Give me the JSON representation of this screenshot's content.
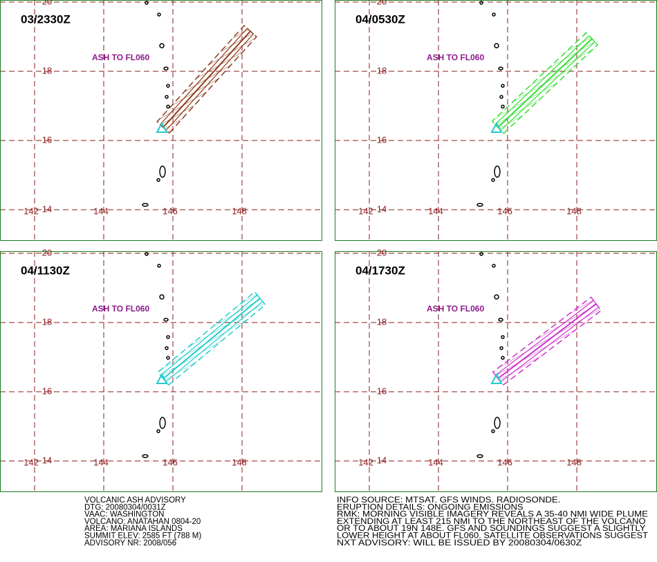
{
  "panels": [
    {
      "time": "03/2330Z",
      "note": "ASH TO FL060",
      "color": "#8b3a1a"
    },
    {
      "time": "04/0530Z",
      "note": "ASH TO FL060",
      "color": "#33dd33"
    },
    {
      "time": "04/1130Z",
      "note": "ASH TO FL060",
      "color": "#22cccc"
    },
    {
      "time": "04/1730Z",
      "note": "ASH TO FL060",
      "color": "#cc33cc"
    }
  ],
  "lon_labels": [
    142,
    144,
    146,
    148
  ],
  "lat_labels": [
    14,
    16,
    18,
    20
  ],
  "left_text": [
    "VOLCANIC ASH ADVISORY",
    "DTG: 20080304/0031Z",
    "VAAC: WASHINGTON",
    "VOLCANO: ANATAHAN 0804-20",
    "AREA: MARIANA ISLANDS",
    "SUMMIT ELEV: 2585 FT (788 M)",
    "ADVISORY NR: 2008/056"
  ],
  "right_text": [
    "INFO SOURCE: MTSAT. GFS WINDS. RADIOSONDE.",
    "ERUPTION DETAILS: ONGOING EMISSIONS",
    "RMK: MORNING VISIBLE IMAGERY REVEALS A 35-40 NMI WIDE PLUME",
    "EXTENDING AT LEAST 215 NMI TO THE NORTHEAST OF THE VOLCANO",
    "OR TO ABOUT 19N 148E. GFS AND SOUNDINGS SUGGEST A SLIGHTLY",
    "LOWER HEIGHT AT ABOUT FL060. SATELLITE OBSERVATIONS SUGGEST",
    "NXT ADVISORY: WILL BE ISSUED BY 20080304/0630Z"
  ]
}
